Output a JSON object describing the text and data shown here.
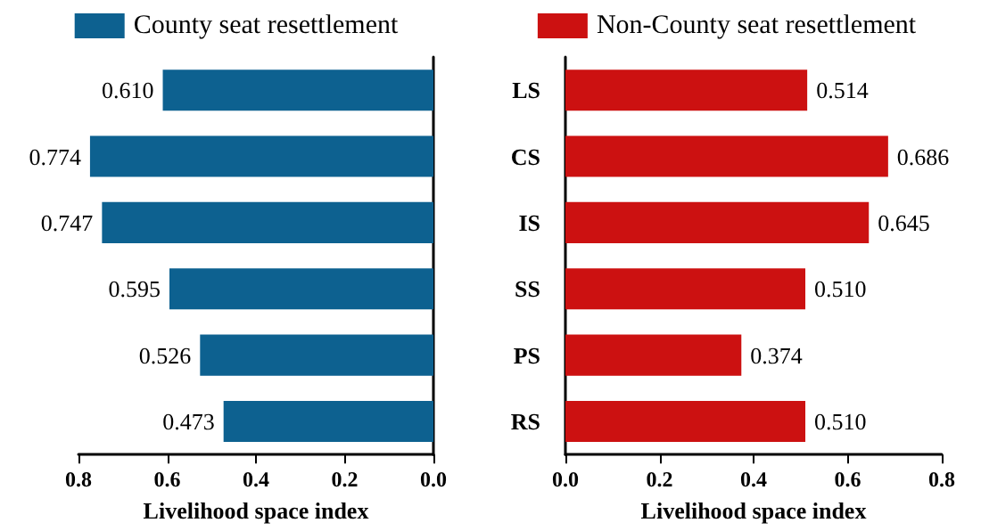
{
  "chart_data": [
    {
      "type": "bar",
      "orientation": "horizontal",
      "categories": [
        null,
        null,
        null,
        null,
        null,
        null
      ],
      "series": [
        {
          "name": "County seat resettlement",
          "color": "#0d6190",
          "values": [
            0.61,
            0.774,
            0.747,
            0.595,
            0.526,
            0.473
          ],
          "value_labels": [
            "0.610",
            "0.774",
            "0.747",
            "0.595",
            "0.526",
            "0.473"
          ]
        }
      ],
      "xlim": [
        0.8,
        0
      ],
      "xticks": [
        0.8,
        0.6,
        0.4,
        0.2,
        {
          "value": 0,
          "label": "0.0"
        }
      ],
      "xlabel": "Livelihood space index",
      "legend": "top",
      "tick_labels": "x"
    },
    {
      "type": "bar",
      "orientation": "horizontal",
      "categories": [
        "LS",
        "CS",
        "IS",
        "SS",
        "PS",
        "RS"
      ],
      "series": [
        {
          "name": "Non-County seat resettlement",
          "color": "#cc1111",
          "values": [
            0.514,
            0.686,
            0.645,
            0.51,
            0.374,
            0.51
          ],
          "value_labels": [
            "0.514",
            "0.686",
            "0.645",
            "0.510",
            "0.374",
            "0.510"
          ]
        }
      ],
      "xlim": [
        0,
        0.8
      ],
      "xticks": [
        {
          "value": 0,
          "label": "0.0"
        },
        0.2,
        0.4,
        0.6,
        0.8
      ],
      "xlabel": "Livelihood space index",
      "legend": "top"
    }
  ]
}
